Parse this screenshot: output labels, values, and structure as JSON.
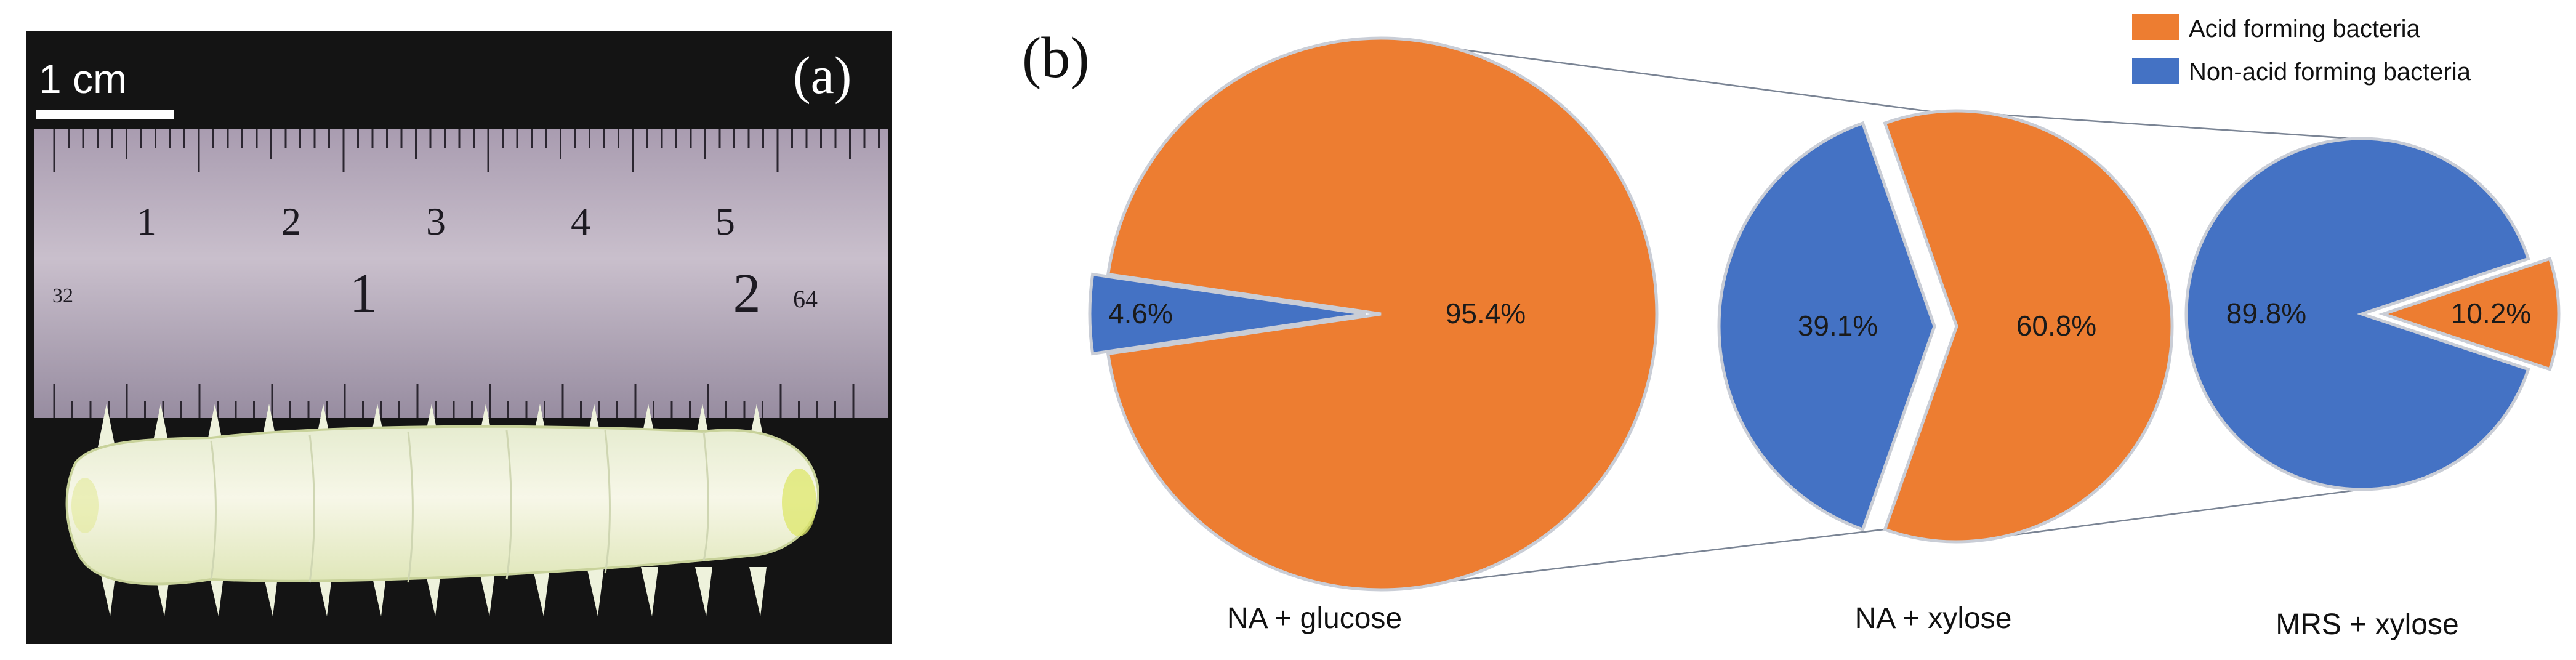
{
  "panel_a": {
    "label": "(a)",
    "scale_bar_label": "1 cm",
    "ruler": {
      "upper_numbers": [
        "1",
        "2",
        "3",
        "4",
        "5"
      ],
      "lower_numbers": [
        "32",
        "1",
        "2",
        "64"
      ]
    }
  },
  "panel_b": {
    "label": "(b)"
  },
  "colors": {
    "acid": "#ED7D31",
    "non_acid": "#4472C4",
    "outline": "#C9CDD6"
  },
  "chart_data": {
    "type": "pie",
    "legend": {
      "placement": "top-right",
      "entries": [
        "Acid forming bacteria",
        "Non-acid forming bacteria"
      ]
    },
    "pies": [
      {
        "category": "NA + glucose",
        "slices": [
          {
            "name": "Acid forming bacteria",
            "value": 95.4,
            "label": "95.4%"
          },
          {
            "name": "Non-acid forming bacteria",
            "value": 4.6,
            "label": "4.6%"
          }
        ]
      },
      {
        "category": "NA + xylose",
        "slices": [
          {
            "name": "Acid forming bacteria",
            "value": 60.8,
            "label": "60.8%"
          },
          {
            "name": "Non-acid forming bacteria",
            "value": 39.1,
            "label": "39.1%"
          }
        ]
      },
      {
        "category": "MRS + xylose",
        "slices": [
          {
            "name": "Acid forming bacteria",
            "value": 10.2,
            "label": "10.2%"
          },
          {
            "name": "Non-acid forming bacteria",
            "value": 89.8,
            "label": "89.8%"
          }
        ]
      }
    ]
  }
}
